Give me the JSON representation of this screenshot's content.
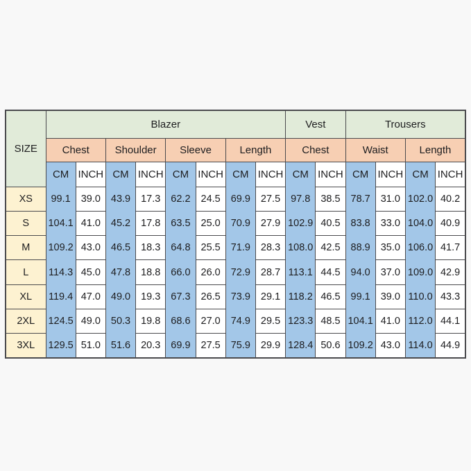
{
  "page": {
    "background_color": "#f8f8f8"
  },
  "style": {
    "header_green": "#e1ebd9",
    "header_peach": "#f7cfb3",
    "cm_blue": "#a3c7e8",
    "size_cream": "#fdf2d1",
    "inch_white": "#ffffff",
    "border_color": "#4a4a4d",
    "text_color": "#1d1d1f"
  },
  "chart_data": {
    "type": "table",
    "corner_label": "SIZE",
    "unit_row": [
      "CM",
      "INCH"
    ],
    "groups": [
      {
        "label": "Blazer",
        "measurements": [
          "Chest",
          "Shoulder",
          "Sleeve",
          "Length"
        ]
      },
      {
        "label": "Vest",
        "measurements": [
          "Chest"
        ]
      },
      {
        "label": "Trousers",
        "measurements": [
          "Waist",
          "Length"
        ]
      }
    ],
    "rows": [
      {
        "size": "XS",
        "values": [
          "99.1",
          "39.0",
          "43.9",
          "17.3",
          "62.2",
          "24.5",
          "69.9",
          "27.5",
          "97.8",
          "38.5",
          "78.7",
          "31.0",
          "102.0",
          "40.2"
        ]
      },
      {
        "size": "S",
        "values": [
          "104.1",
          "41.0",
          "45.2",
          "17.8",
          "63.5",
          "25.0",
          "70.9",
          "27.9",
          "102.9",
          "40.5",
          "83.8",
          "33.0",
          "104.0",
          "40.9"
        ]
      },
      {
        "size": "M",
        "values": [
          "109.2",
          "43.0",
          "46.5",
          "18.3",
          "64.8",
          "25.5",
          "71.9",
          "28.3",
          "108.0",
          "42.5",
          "88.9",
          "35.0",
          "106.0",
          "41.7"
        ]
      },
      {
        "size": "L",
        "values": [
          "114.3",
          "45.0",
          "47.8",
          "18.8",
          "66.0",
          "26.0",
          "72.9",
          "28.7",
          "113.1",
          "44.5",
          "94.0",
          "37.0",
          "109.0",
          "42.9"
        ]
      },
      {
        "size": "XL",
        "values": [
          "119.4",
          "47.0",
          "49.0",
          "19.3",
          "67.3",
          "26.5",
          "73.9",
          "29.1",
          "118.2",
          "46.5",
          "99.1",
          "39.0",
          "110.0",
          "43.3"
        ]
      },
      {
        "size": "2XL",
        "values": [
          "124.5",
          "49.0",
          "50.3",
          "19.8",
          "68.6",
          "27.0",
          "74.9",
          "29.5",
          "123.3",
          "48.5",
          "104.1",
          "41.0",
          "112.0",
          "44.1"
        ]
      },
      {
        "size": "3XL",
        "values": [
          "129.5",
          "51.0",
          "51.6",
          "20.3",
          "69.9",
          "27.5",
          "75.9",
          "29.9",
          "128.4",
          "50.6",
          "109.2",
          "43.0",
          "114.0",
          "44.9"
        ]
      }
    ]
  }
}
